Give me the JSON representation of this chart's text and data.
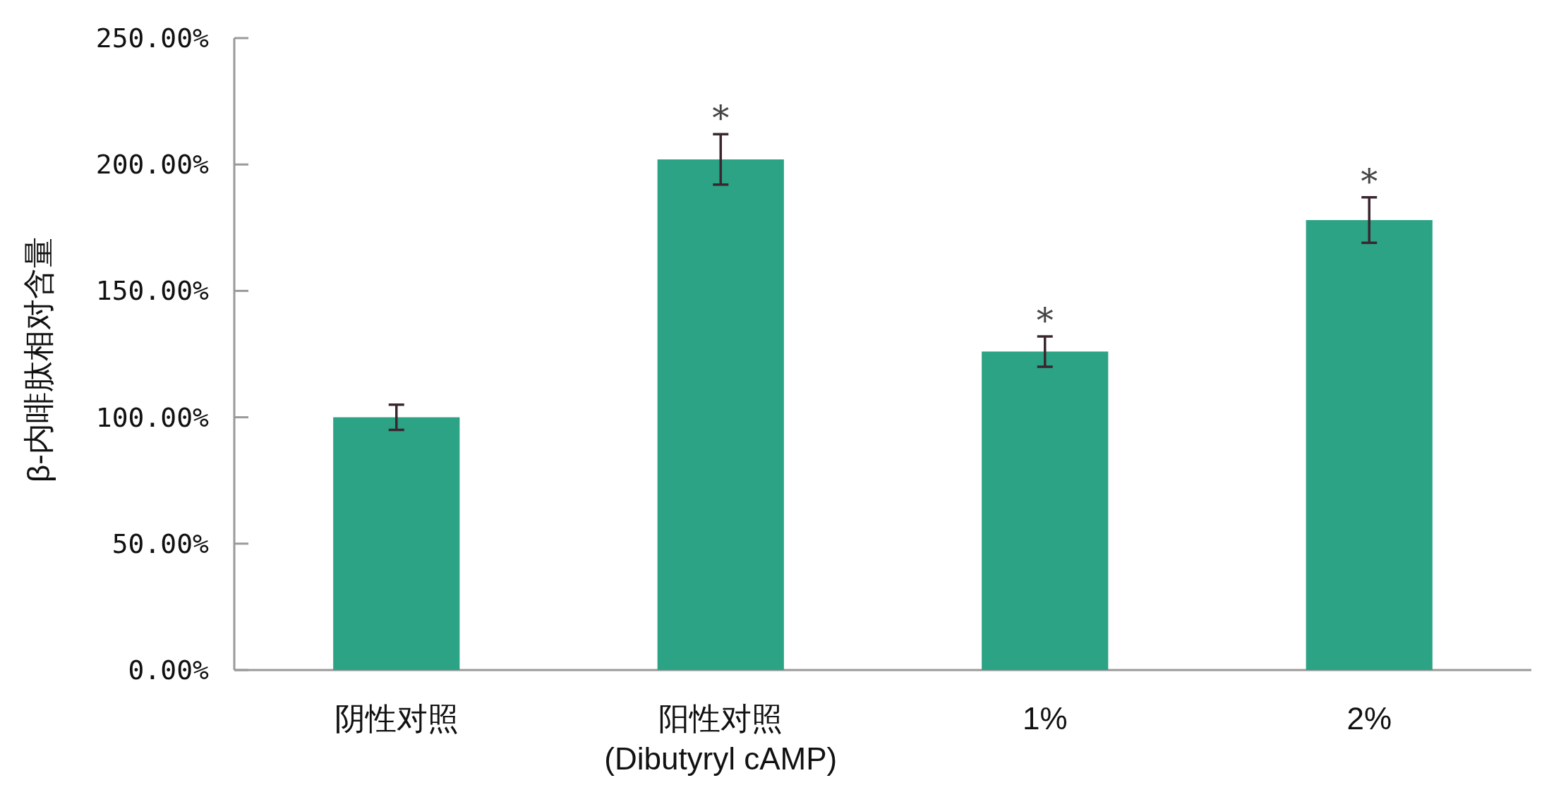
{
  "chart_data": {
    "type": "bar",
    "ylabel": "β-内啡肽相对含量",
    "categories": [
      "阴性对照",
      "阳性对照\n(Dibutyryl cAMP)",
      "1%",
      "2%"
    ],
    "values": [
      100,
      202,
      126,
      178
    ],
    "errors": [
      5,
      10,
      6,
      9
    ],
    "color": "#2ba384",
    "ylim": [
      0,
      250
    ],
    "yticks": [
      {
        "value": 0,
        "label": "0.00%"
      },
      {
        "value": 50,
        "label": "50.00%"
      },
      {
        "value": 100,
        "label": "100.00%"
      },
      {
        "value": 150,
        "label": "150.00%"
      },
      {
        "value": 200,
        "label": "200.00%"
      },
      {
        "value": 250,
        "label": "250.00%"
      }
    ],
    "annotations": [
      {
        "text": "*",
        "x": "阳性对照\n(Dibutyryl cAMP)",
        "y": 212
      },
      {
        "text": "*",
        "x": "1%",
        "y": 132
      },
      {
        "text": "*",
        "x": "2%",
        "y": 187
      }
    ]
  }
}
